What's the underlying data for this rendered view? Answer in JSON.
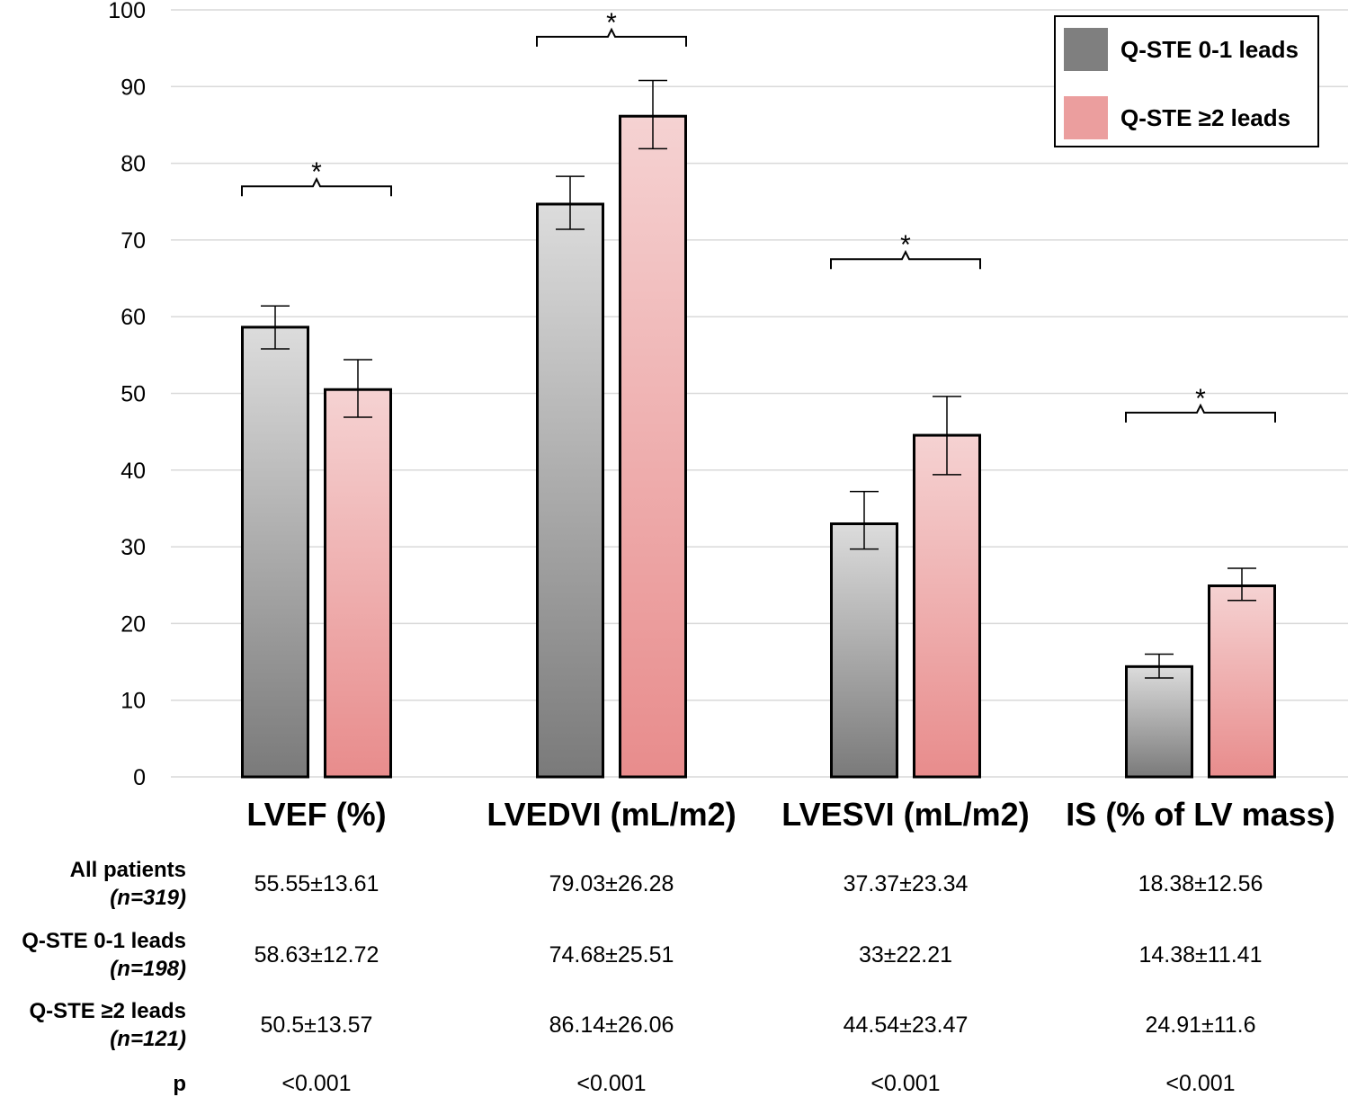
{
  "chart_data": {
    "type": "bar",
    "title": "",
    "xlabel": "",
    "ylabel": "",
    "ylim": [
      0,
      100
    ],
    "yticks": [
      0,
      10,
      20,
      30,
      40,
      50,
      60,
      70,
      80,
      90,
      100
    ],
    "grid": true,
    "legend_position": "top-right",
    "categories": [
      "LVEF (%)",
      "LVEDVI (mL/m2)",
      "LVESVI (mL/m2)",
      "IS (% of LV mass)"
    ],
    "series": [
      {
        "name": "Q-STE 0-1 leads",
        "color": "#7f7f7f",
        "gradient": [
          "#dcdcdc",
          "#7a7a7a"
        ],
        "values": [
          58.63,
          74.68,
          33,
          14.38
        ],
        "error_low": [
          55.8,
          71.4,
          29.7,
          12.9
        ],
        "error_high": [
          61.4,
          78.3,
          37.2,
          16.0
        ]
      },
      {
        "name": "Q-STE ≥2 leads",
        "color": "#eb9e9e",
        "gradient": [
          "#f5d2d2",
          "#e88c8c"
        ],
        "values": [
          50.5,
          86.14,
          44.54,
          24.91
        ],
        "error_low": [
          46.9,
          81.9,
          39.4,
          23.0
        ],
        "error_high": [
          54.4,
          90.8,
          49.6,
          27.2
        ]
      }
    ],
    "significance": [
      {
        "category": 0,
        "label": "*",
        "y": 77
      },
      {
        "category": 1,
        "label": "*",
        "y": 96.5
      },
      {
        "category": 2,
        "label": "*",
        "y": 67.5
      },
      {
        "category": 3,
        "label": "*",
        "y": 47.5
      }
    ],
    "table": {
      "rows": [
        {
          "label": "All patients",
          "sublabel": "(n=319)",
          "cells": [
            "55.55±13.61",
            "79.03±26.28",
            "37.37±23.34",
            "18.38±12.56"
          ]
        },
        {
          "label": "Q-STE 0-1 leads",
          "sublabel": "(n=198)",
          "cells": [
            "58.63±12.72",
            "74.68±25.51",
            "33±22.21",
            "14.38±11.41"
          ]
        },
        {
          "label": "Q-STE ≥2 leads",
          "sublabel": "(n=121)",
          "cells": [
            "50.5±13.57",
            "86.14±26.06",
            "44.54±23.47",
            "24.91±11.6"
          ]
        },
        {
          "label": "p",
          "sublabel": "",
          "cells": [
            "<0.001",
            "<0.001",
            "<0.001",
            "<0.001"
          ]
        }
      ]
    }
  }
}
